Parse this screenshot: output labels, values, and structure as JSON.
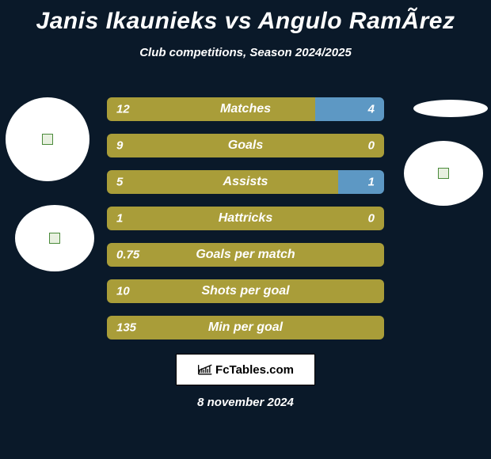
{
  "title": "Janis Ikaunieks vs Angulo RamÃ­rez",
  "subtitle": "Club competitions, Season 2024/2025",
  "date": "8 november 2024",
  "footer_brand": "FcTables.com",
  "colors": {
    "background": "#0a1929",
    "bar_left": "#a99d39",
    "bar_right": "#5d98c4",
    "bar_full": "#a99d39",
    "text": "#ffffff",
    "logo_bg": "#ffffff"
  },
  "bar_width_total": 350,
  "stats": [
    {
      "label": "Matches",
      "left_val": "12",
      "right_val": "4",
      "left_w": 263,
      "right_w": 87,
      "show_right": true,
      "right_color": "#5d98c4"
    },
    {
      "label": "Goals",
      "left_val": "9",
      "right_val": "0",
      "left_w": 350,
      "right_w": 0,
      "show_right": false,
      "right_color": "#5d98c4"
    },
    {
      "label": "Assists",
      "left_val": "5",
      "right_val": "1",
      "left_w": 292,
      "right_w": 58,
      "show_right": true,
      "right_color": "#5d98c4"
    },
    {
      "label": "Hattricks",
      "left_val": "1",
      "right_val": "0",
      "left_w": 350,
      "right_w": 0,
      "show_right": false,
      "right_color": "#5d98c4"
    },
    {
      "label": "Goals per match",
      "left_val": "0.75",
      "right_val": "",
      "left_w": 350,
      "right_w": 0,
      "show_right": false,
      "right_color": "#5d98c4"
    },
    {
      "label": "Shots per goal",
      "left_val": "10",
      "right_val": "",
      "left_w": 350,
      "right_w": 0,
      "show_right": false,
      "right_color": "#5d98c4"
    },
    {
      "label": "Min per goal",
      "left_val": "135",
      "right_val": "",
      "left_w": 350,
      "right_w": 0,
      "show_right": false,
      "right_color": "#5d98c4"
    }
  ],
  "avatars": {
    "left_top": {
      "shape": "circle"
    },
    "left_bottom": {
      "shape": "ellipse"
    },
    "right_top": {
      "shape": "ellipse-flat"
    },
    "right_bottom": {
      "shape": "ellipse"
    }
  }
}
